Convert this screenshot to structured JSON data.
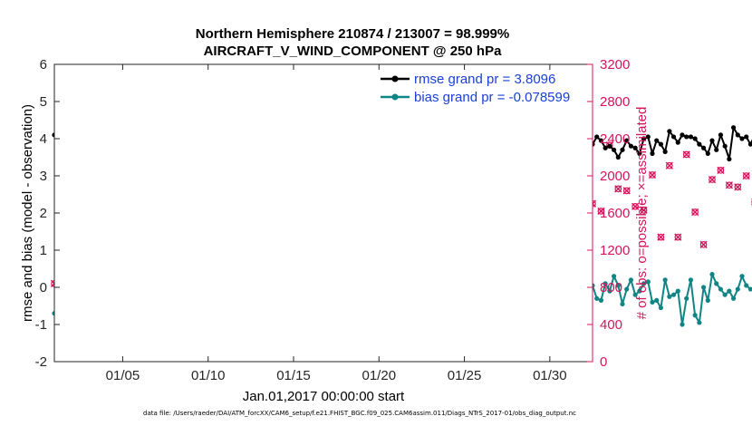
{
  "chart_data": {
    "type": "line",
    "title_line1": "Northern Hemisphere 210874 / 213007 = 98.999%",
    "title_line2": "AIRCRAFT_V_WIND_COMPONENT @ 250 hPa",
    "xlabel": "Jan.01,2017 00:00:00 start",
    "ylabel_left": "rmse and bias (model - observation)",
    "ylabel_right": "# of obs: o=possible; ×=assimilated",
    "x_range_days": [
      1,
      32.5
    ],
    "ylim_left": [
      -2,
      6
    ],
    "ylim_right": [
      0,
      3200
    ],
    "left_ticks": [
      "-2",
      "-1",
      "0",
      "1",
      "2",
      "3",
      "4",
      "5",
      "6"
    ],
    "right_ticks": [
      "0",
      "400",
      "800",
      "1200",
      "1600",
      "2000",
      "2400",
      "2800",
      "3200"
    ],
    "x_ticks": [
      {
        "day": 5,
        "label": "01/05"
      },
      {
        "day": 10,
        "label": "01/10"
      },
      {
        "day": 15,
        "label": "01/15"
      },
      {
        "day": 20,
        "label": "01/20"
      },
      {
        "day": 25,
        "label": "01/25"
      },
      {
        "day": 30,
        "label": "01/30"
      }
    ],
    "zero_line": 0,
    "colors": {
      "rmse": "#000000",
      "bias": "#0f8585",
      "obs": "#d4145a",
      "zero": "#b0b0b0",
      "legend_text": "#1a3fd6"
    },
    "series": [
      {
        "name": "rmse grand pr = 3.8096",
        "axis": "left",
        "x_start": 1.0,
        "x_step": 0.25,
        "values": [
          4.1,
          4.15,
          3.95,
          4.2,
          4.15,
          3.95,
          4.2,
          4.25,
          4.1,
          4.3,
          4.3,
          3.8,
          3.7,
          3.75,
          3.8,
          3.85,
          3.8,
          3.8,
          3.6,
          3.85,
          3.45,
          3.7,
          4.0,
          3.85,
          3.6,
          3.9,
          4.0,
          3.8,
          3.8,
          3.6,
          3.8,
          3.5,
          3.45,
          3.55,
          3.4,
          3.6,
          3.45,
          3.45,
          3.55,
          3.75,
          3.8,
          3.85,
          3.6,
          3.9,
          4.0,
          3.7,
          4.1,
          3.55,
          3.8,
          4.05,
          4.25,
          4.0,
          4.05,
          3.95,
          4.1,
          3.8,
          4.05,
          4.1,
          4.6,
          4.4,
          4.05,
          4.2,
          4.35,
          3.9,
          4.0,
          3.85,
          3.95,
          4.2,
          4.45,
          4.35,
          4.4,
          4.35,
          4.15,
          3.7,
          3.85,
          4.05,
          4.1,
          3.85,
          3.95,
          3.95,
          3.55,
          4.0,
          3.75,
          4.05,
          3.65,
          3.6,
          3.45,
          3.7,
          3.85,
          3.8,
          3.65,
          3.6,
          4.15,
          3.95,
          3.85,
          3.5,
          3.4,
          3.6,
          3.75,
          3.75,
          3.95,
          3.55,
          3.7,
          3.95,
          3.5,
          3.4,
          3.65,
          3.8,
          3.6,
          3.85,
          3.9,
          3.7,
          3.85,
          3.5,
          3.65,
          3.45,
          3.55,
          3.9,
          3.8,
          3.85,
          3.75,
          3.4,
          4.05,
          3.45,
          3.85,
          3.5,
          3.85,
          4.05,
          3.95,
          3.75,
          3.8,
          3.7,
          3.5,
          3.7,
          3.95,
          3.8,
          3.75,
          3.6,
          4.0,
          4.05,
          3.6,
          3.95,
          3.85,
          3.65,
          4.2,
          4.05,
          3.9,
          4.1,
          4.05,
          4.05,
          4.0,
          3.85,
          3.75,
          3.6,
          3.95,
          3.7,
          4.1,
          3.8,
          3.45,
          4.3,
          4.1,
          4.0,
          4.05,
          3.85,
          4.1,
          4.0,
          3.95,
          3.8,
          3.95,
          3.8,
          3.9,
          3.9,
          4.0,
          4.05,
          3.95,
          4.05,
          4.1,
          4.2,
          4.05,
          4.1,
          3.9,
          3.8,
          4.2,
          4.05,
          3.7,
          4.1,
          4.0,
          3.95
        ]
      },
      {
        "name": "bias grand pr = -0.078599",
        "axis": "left",
        "x_start": 1.0,
        "x_step": 0.25,
        "values": [
          -0.7,
          -0.2,
          -0.15,
          0.0,
          -0.05,
          -0.25,
          -0.15,
          -0.1,
          -0.5,
          -0.2,
          0.05,
          -0.3,
          -0.2,
          -0.15,
          -0.5,
          -0.35,
          0.05,
          -0.3,
          -0.1,
          -0.5,
          -0.2,
          -0.35,
          -0.15,
          -0.2,
          -0.2,
          0.0,
          0.1,
          -0.2,
          -0.2,
          0.0,
          -0.25,
          -0.2,
          -0.1,
          -0.6,
          -0.3,
          -0.2,
          -1.0,
          -0.5,
          -0.3,
          -0.2,
          -0.1,
          -0.2,
          -0.3,
          -0.15,
          -0.3,
          0.05,
          -0.2,
          -0.1,
          -0.5,
          -0.25,
          0.3,
          -0.3,
          -0.2,
          -0.1,
          0.0,
          -0.6,
          0.1,
          0.2,
          -0.1,
          0.45,
          0.05,
          0.0,
          -0.1,
          0.05,
          0.3,
          -0.1,
          -0.8,
          -0.1,
          0.6,
          0.35,
          0.4,
          0.4,
          -0.3,
          0.1,
          -0.15,
          0.2,
          -0.5,
          -0.2,
          0.0,
          -0.05,
          -0.2,
          -0.4,
          0.0,
          -0.25,
          0.2,
          0.0,
          -0.3,
          -1.0,
          -0.3,
          -0.2,
          -0.5,
          0.35,
          0.3,
          0.05,
          0.5,
          0.95,
          -0.2,
          0.1,
          0.0,
          -0.95,
          -0.4,
          -0.1,
          0.45,
          0.1,
          -0.5,
          -0.25,
          0.05,
          -0.55,
          0.4,
          -0.05,
          -0.2,
          0.0,
          0.3,
          0.15,
          -0.2,
          -0.9,
          0.05,
          -0.2,
          -0.35,
          0.1,
          -0.3,
          -0.05,
          0.05,
          -0.2,
          0.0,
          -0.1,
          0.05,
          -0.3,
          -0.35,
          0.1,
          -0.1,
          0.3,
          0.05,
          -0.45,
          -0.05,
          0.2,
          -0.2,
          -0.1,
          0.1,
          0.15,
          -0.4,
          -0.35,
          -0.55,
          0.2,
          -0.25,
          -0.2,
          -0.1,
          -1.0,
          -0.3,
          0.2,
          -0.75,
          -0.95,
          0.0,
          -0.35,
          0.35,
          0.1,
          -0.05,
          -0.2,
          -0.1,
          -0.3,
          -0.05,
          0.3,
          0.05,
          -0.05,
          0.0,
          -0.25,
          -0.5,
          -0.2,
          -0.35,
          -0.1,
          -0.25,
          -0.1,
          -0.6,
          0.1,
          -0.3,
          -0.05,
          -0.25,
          -0.2,
          0.0,
          -0.5,
          -0.3,
          0.2,
          0.0,
          -0.2,
          -0.05,
          -0.2,
          0.0,
          0.3,
          0.05,
          -0.3,
          -0.55,
          -0.2,
          0.3,
          -0.2
        ]
      },
      {
        "name": "obs possible / assimilated",
        "axis": "right",
        "x_start": 1.0,
        "x_step": 0.5,
        "values": [
          840,
          1030,
          1740,
          2200,
          1230,
          1900,
          2020,
          1660,
          2080,
          1370,
          1880,
          2100,
          1340,
          2080,
          1850,
          2160,
          1220,
          2190,
          1600,
          1340,
          2190,
          2060,
          2360,
          1380,
          2320,
          1910,
          2280,
          1800,
          1880,
          1880,
          2150,
          1870,
          1290,
          2190,
          1820,
          1770,
          2060,
          1880,
          1280,
          2060,
          1750,
          2390,
          2270,
          1730,
          1850,
          2000,
          1070,
          1920,
          1740,
          2080,
          1900,
          1360,
          2340,
          1730,
          2040,
          1950,
          1680,
          2480,
          2110,
          1700,
          1860,
          1570,
          2190,
          1700,
          1620,
          2330,
          1860,
          1840,
          1670,
          1630,
          2010,
          1340,
          2110,
          1340,
          2230,
          1610,
          1260,
          1960,
          2060,
          1900,
          1880,
          2000,
          1720,
          1260,
          1590,
          1010,
          0
        ]
      }
    ]
  },
  "footer": "data file: /Users/raeder/DAI/ATM_forcXX/CAM6_setup/f.e21.FHIST_BGC.f09_025.CAM6assim.011/Diags_NTrS_2017-01/obs_diag_output.nc"
}
